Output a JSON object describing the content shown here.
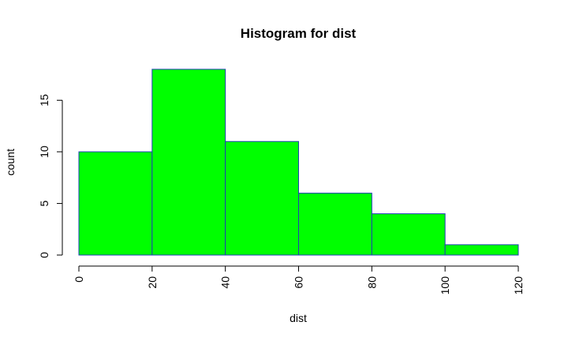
{
  "chart_data": {
    "type": "bar",
    "subtype": "histogram",
    "title": "Histogram for dist",
    "xlabel": "dist",
    "ylabel": "count",
    "bins": [
      {
        "from": 0,
        "to": 20,
        "count": 10
      },
      {
        "from": 20,
        "to": 40,
        "count": 18
      },
      {
        "from": 40,
        "to": 60,
        "count": 11
      },
      {
        "from": 60,
        "to": 80,
        "count": 6
      },
      {
        "from": 80,
        "to": 100,
        "count": 4
      },
      {
        "from": 100,
        "to": 120,
        "count": 1
      }
    ],
    "xlim": [
      0,
      120
    ],
    "ylim": [
      0,
      18
    ],
    "x_ticks": [
      0,
      20,
      40,
      60,
      80,
      100,
      120
    ],
    "x_tick_labels": [
      "0",
      "20",
      "40",
      "60",
      "80",
      "100",
      "120"
    ],
    "y_ticks": [
      0,
      5,
      10,
      15
    ],
    "y_tick_labels": [
      "0",
      "5",
      "10",
      "15"
    ],
    "x_tick_orientation": "vertical",
    "y_tick_orientation": "vertical",
    "grid": false,
    "legend": "none",
    "colors": {
      "bar_fill": "#00ff00",
      "bar_border": "#1f3fb4",
      "axis": "#000000",
      "text": "#000000",
      "background": "#ffffff"
    }
  }
}
